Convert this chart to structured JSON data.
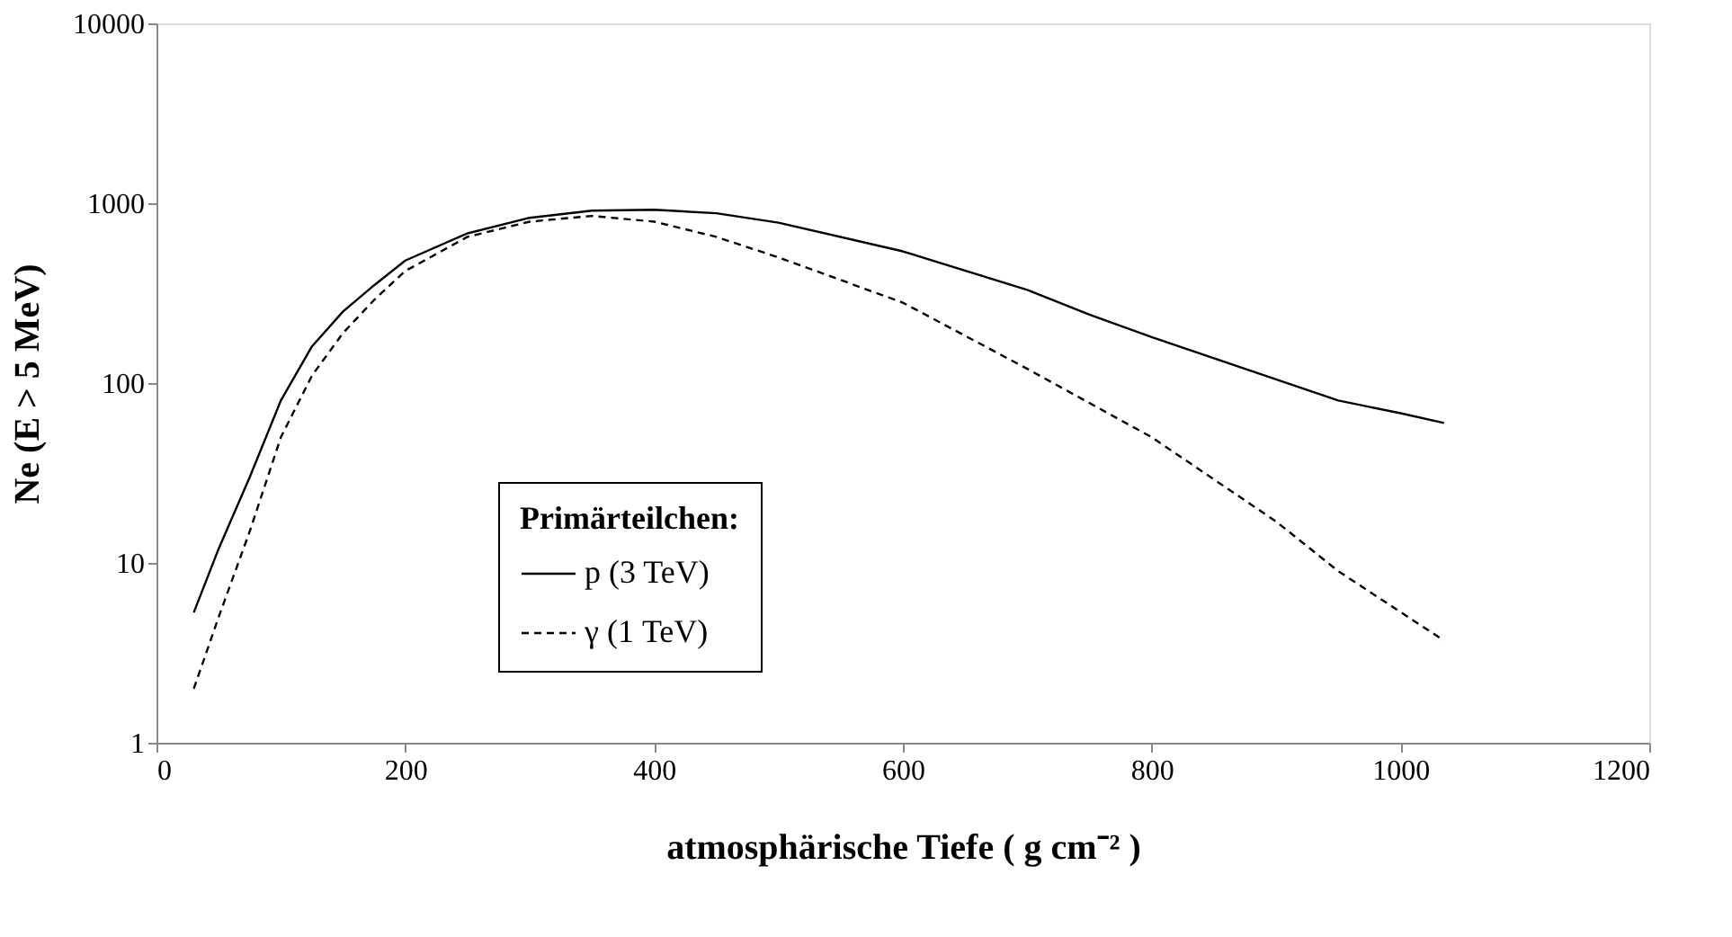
{
  "chart_data": {
    "type": "line",
    "xlabel": "atmosphärische Tiefe ( g cm⁻² )",
    "ylabel": "Ne  (E > 5 MeV)",
    "legend_title": "Primärteilchen:",
    "legend": "bottom",
    "log": "y",
    "grid": false,
    "marker": "none",
    "xlim": [
      0,
      1200
    ],
    "xticks": [
      0,
      200,
      400,
      600,
      800,
      1000,
      1200
    ],
    "ylim": [
      1,
      10000
    ],
    "yticks": [
      1,
      10,
      100,
      1000,
      10000
    ],
    "series": [
      {
        "name": "p (3 TeV)",
        "color": "#000000",
        "line_style": "solid",
        "x": [
          30,
          50,
          75,
          100,
          125,
          150,
          175,
          200,
          250,
          300,
          350,
          400,
          450,
          500,
          600,
          700,
          750,
          800,
          900,
          950,
          1000,
          1035
        ],
        "values": [
          5.3,
          12,
          30,
          80,
          160,
          250,
          350,
          480,
          680,
          830,
          910,
          920,
          880,
          780,
          540,
          330,
          240,
          180,
          105,
          80,
          68,
          60
        ]
      },
      {
        "name": "γ (1 TeV)",
        "color": "#000000",
        "line_style": "dashed",
        "x": [
          30,
          50,
          75,
          100,
          125,
          150,
          175,
          200,
          250,
          300,
          350,
          400,
          450,
          500,
          600,
          700,
          800,
          900,
          950,
          1035
        ],
        "values": [
          2,
          5,
          15,
          50,
          110,
          190,
          290,
          420,
          650,
          790,
          850,
          790,
          650,
          500,
          280,
          120,
          50,
          17,
          9,
          3.7
        ]
      }
    ]
  }
}
